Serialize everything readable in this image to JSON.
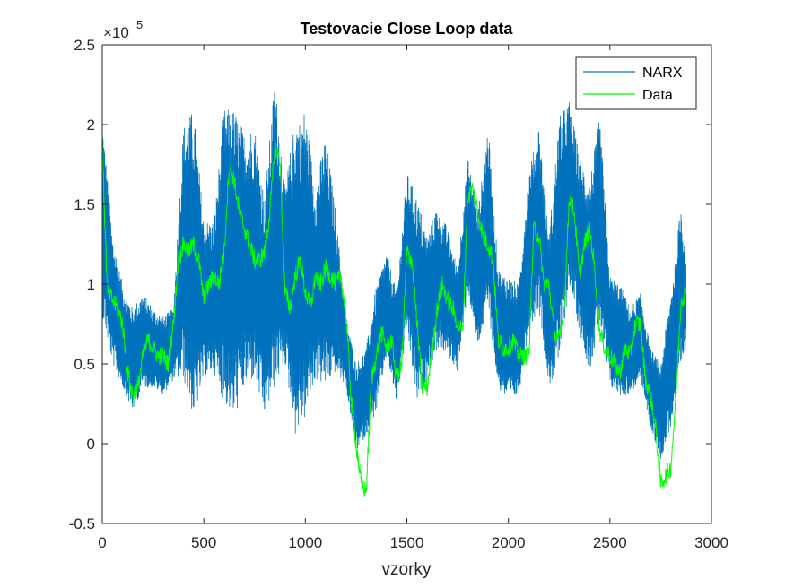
{
  "chart_data": {
    "type": "line",
    "title": "Testovacie Close Loop data",
    "xlabel": "vzorky",
    "ylabel": "",
    "xlim": [
      0,
      3000
    ],
    "ylim": [
      -0.5,
      2.5
    ],
    "y_exponent_label": "×10",
    "y_exponent_power": "5",
    "xticks": [
      "0",
      "500",
      "1000",
      "1500",
      "2000",
      "2500",
      "3000"
    ],
    "yticks": [
      "-0.5",
      "0",
      "0.5",
      "1",
      "1.5",
      "2",
      "2.5"
    ],
    "xtick_values": [
      0,
      500,
      1000,
      1500,
      2000,
      2500,
      3000
    ],
    "ytick_values": [
      -0.5,
      0,
      0.5,
      1,
      1.5,
      2,
      2.5
    ],
    "grid": false,
    "legend_placement": "top-right",
    "series": [
      {
        "name": "NARX",
        "color": "#0072BD",
        "x": [
          0,
          50,
          100,
          150,
          200,
          250,
          300,
          350,
          400,
          450,
          500,
          550,
          600,
          650,
          700,
          750,
          800,
          850,
          900,
          950,
          1000,
          1050,
          1100,
          1150,
          1200,
          1250,
          1300,
          1350,
          1400,
          1450,
          1500,
          1550,
          1600,
          1650,
          1700,
          1750,
          1800,
          1850,
          1900,
          1950,
          2000,
          2050,
          2100,
          2150,
          2200,
          2250,
          2300,
          2350,
          2400,
          2450,
          2500,
          2550,
          2600,
          2650,
          2700,
          2750,
          2800,
          2850,
          2875
        ],
        "upper": [
          2.05,
          1.3,
          1.0,
          0.85,
          0.95,
          0.85,
          0.8,
          0.85,
          2.0,
          2.1,
          1.4,
          1.4,
          2.1,
          2.1,
          1.95,
          2.0,
          1.55,
          2.3,
          1.6,
          2.05,
          2.1,
          1.6,
          1.95,
          1.45,
          0.8,
          0.5,
          0.6,
          1.0,
          1.2,
          0.95,
          1.7,
          1.55,
          1.3,
          1.5,
          1.35,
          1.1,
          1.8,
          1.45,
          2.0,
          1.1,
          1.05,
          1.0,
          1.7,
          2.0,
          1.3,
          2.05,
          2.15,
          1.8,
          1.65,
          2.05,
          1.05,
          1.0,
          0.85,
          0.95,
          0.6,
          0.5,
          0.95,
          1.5,
          1.2
        ],
        "lower": [
          0.8,
          0.5,
          0.35,
          0.2,
          0.35,
          0.35,
          0.3,
          0.4,
          0.4,
          0.15,
          0.4,
          0.45,
          0.25,
          0.15,
          0.35,
          0.4,
          0.15,
          0.35,
          0.5,
          0.05,
          0.15,
          0.4,
          0.35,
          0.45,
          0.35,
          -0.05,
          0.05,
          0.2,
          0.55,
          0.25,
          0.7,
          0.25,
          0.4,
          0.6,
          0.55,
          0.45,
          0.95,
          0.6,
          0.85,
          0.35,
          0.25,
          0.3,
          0.7,
          0.85,
          0.35,
          0.5,
          1.0,
          0.7,
          0.45,
          0.75,
          0.35,
          0.3,
          0.3,
          0.4,
          0.1,
          -0.1,
          0.1,
          0.45,
          0.6
        ]
      },
      {
        "name": "Data",
        "color": "#00FF00",
        "x": [
          0,
          25,
          50,
          75,
          100,
          125,
          150,
          175,
          200,
          225,
          250,
          275,
          300,
          325,
          350,
          375,
          400,
          425,
          450,
          475,
          500,
          525,
          550,
          575,
          600,
          625,
          650,
          675,
          700,
          725,
          750,
          775,
          800,
          825,
          850,
          875,
          900,
          925,
          950,
          975,
          1000,
          1025,
          1050,
          1075,
          1100,
          1125,
          1150,
          1175,
          1200,
          1225,
          1250,
          1275,
          1300,
          1325,
          1350,
          1375,
          1400,
          1425,
          1450,
          1475,
          1500,
          1525,
          1550,
          1575,
          1600,
          1625,
          1650,
          1675,
          1700,
          1725,
          1750,
          1775,
          1800,
          1825,
          1850,
          1875,
          1900,
          1925,
          1950,
          1975,
          2000,
          2025,
          2050,
          2075,
          2100,
          2125,
          2150,
          2175,
          2200,
          2225,
          2250,
          2275,
          2300,
          2325,
          2350,
          2375,
          2400,
          2425,
          2450,
          2475,
          2500,
          2525,
          2550,
          2575,
          2600,
          2625,
          2650,
          2675,
          2700,
          2725,
          2750,
          2775,
          2800,
          2825,
          2850,
          2875
        ],
        "values": [
          1.85,
          0.95,
          0.9,
          0.85,
          0.75,
          0.45,
          0.3,
          0.35,
          0.55,
          0.65,
          0.6,
          0.55,
          0.55,
          0.5,
          0.75,
          1.15,
          1.25,
          1.2,
          1.25,
          1.15,
          0.9,
          1.0,
          1.05,
          1.0,
          1.2,
          1.75,
          1.65,
          1.45,
          1.35,
          1.25,
          1.15,
          1.15,
          1.2,
          1.45,
          1.85,
          1.8,
          0.95,
          0.85,
          1.05,
          1.15,
          0.95,
          0.85,
          1.05,
          1.0,
          1.1,
          1.05,
          1.0,
          1.05,
          0.8,
          0.3,
          0.0,
          -0.25,
          -0.3,
          0.4,
          0.55,
          0.7,
          0.6,
          0.65,
          0.4,
          0.5,
          1.2,
          1.15,
          0.75,
          0.35,
          0.35,
          0.6,
          0.85,
          1.0,
          0.9,
          0.85,
          0.75,
          0.7,
          1.55,
          1.6,
          1.45,
          1.3,
          1.25,
          1.15,
          0.65,
          0.6,
          0.6,
          0.65,
          0.55,
          0.55,
          0.55,
          1.35,
          1.3,
          1.0,
          1.0,
          0.7,
          0.65,
          0.85,
          1.55,
          1.45,
          1.05,
          1.25,
          1.35,
          1.1,
          0.7,
          0.6,
          0.55,
          0.5,
          0.45,
          0.6,
          0.55,
          0.75,
          0.75,
          0.4,
          0.3,
          0.1,
          -0.25,
          -0.2,
          -0.15,
          0.3,
          0.9,
          0.95
        ]
      }
    ]
  }
}
